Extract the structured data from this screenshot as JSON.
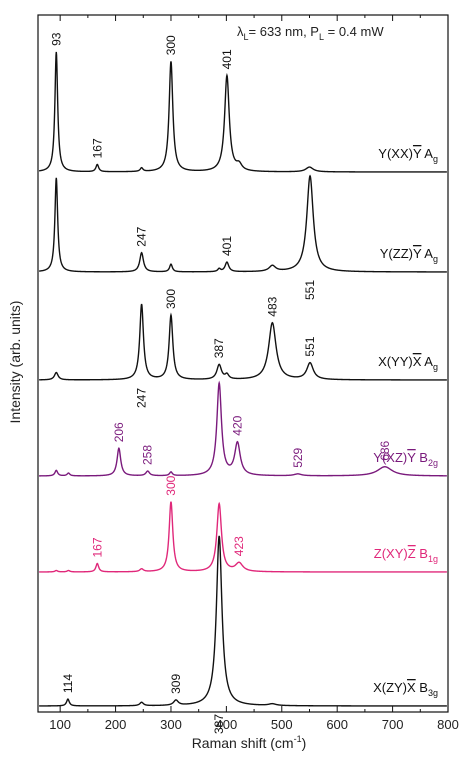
{
  "chart_data": {
    "type": "line",
    "xlabel": "Raman shift (cm",
    "xlabel_sup": "-1",
    "xlabel_end": ")",
    "ylabel": "Intensity (arb. units)",
    "xlim": [
      60,
      800
    ],
    "xticks": [
      100,
      200,
      300,
      400,
      500,
      600,
      700,
      800
    ],
    "annotation": {
      "lambda": "λ",
      "lambda_sub": "L",
      "text1": "= 633 nm, P",
      "p_sub": "L",
      "text2": " = 0.4 mW"
    },
    "colors": {
      "black": "#111111",
      "purple": "#7a1a7c",
      "magenta": "#e0287a"
    },
    "series": [
      {
        "name": "Y(XX)Y A_g",
        "label_main": "Y(XX)",
        "label_bar": "Y",
        "label_sym": " A",
        "label_sub": "g",
        "color": "#111111",
        "peaks": [
          [
            93,
            1.0,
            3
          ],
          [
            167,
            0.06,
            3
          ],
          [
            247,
            0.03,
            3
          ],
          [
            300,
            0.92,
            4
          ],
          [
            401,
            0.8,
            5
          ],
          [
            423,
            0.05,
            6
          ],
          [
            550,
            0.04,
            8
          ]
        ],
        "peak_labels": [
          {
            "text": "93",
            "x": 93,
            "pos": "above"
          },
          {
            "text": "167",
            "x": 167,
            "pos": "above"
          },
          {
            "text": "300",
            "x": 300,
            "pos": "above"
          },
          {
            "text": "401",
            "x": 401,
            "pos": "above"
          }
        ]
      },
      {
        "name": "Y(ZZ)Y A_g",
        "label_main": "Y(ZZ)",
        "label_bar": "Y",
        "label_sym": " A",
        "label_sub": "g",
        "color": "#111111",
        "peaks": [
          [
            93,
            0.98,
            3
          ],
          [
            247,
            0.2,
            4
          ],
          [
            300,
            0.08,
            3
          ],
          [
            387,
            0.03,
            3
          ],
          [
            401,
            0.1,
            4
          ],
          [
            483,
            0.06,
            7
          ],
          [
            551,
            1.0,
            7
          ]
        ],
        "peak_labels": [
          {
            "text": "247",
            "x": 247,
            "pos": "above"
          },
          {
            "text": "401",
            "x": 401,
            "pos": "above"
          },
          {
            "text": "551",
            "x": 551,
            "pos": "below"
          }
        ]
      },
      {
        "name": "X(YY)X A_g",
        "label_main": "X(YY)",
        "label_bar": "X",
        "label_sym": " A",
        "label_sub": "g",
        "color": "#111111",
        "peaks": [
          [
            93,
            0.08,
            4
          ],
          [
            247,
            0.82,
            4
          ],
          [
            300,
            0.7,
            4
          ],
          [
            387,
            0.16,
            5
          ],
          [
            401,
            0.05,
            4
          ],
          [
            483,
            0.62,
            8
          ],
          [
            551,
            0.18,
            7
          ]
        ],
        "peak_labels": [
          {
            "text": "300",
            "x": 300,
            "pos": "above"
          },
          {
            "text": "387",
            "x": 387,
            "pos": "above"
          },
          {
            "text": "483",
            "x": 483,
            "pos": "above"
          },
          {
            "text": "551",
            "x": 551,
            "pos": "above"
          },
          {
            "text": "247",
            "x": 247,
            "pos": "below"
          }
        ]
      },
      {
        "name": "Y(XZ)Y B_2g",
        "label_main": "Y(XZ)",
        "label_bar": "Y",
        "label_sym": " B",
        "label_sub": "2g",
        "color": "#7a1a7c",
        "peaks": [
          [
            93,
            0.06,
            3
          ],
          [
            115,
            0.03,
            3
          ],
          [
            206,
            0.3,
            4
          ],
          [
            258,
            0.05,
            4
          ],
          [
            300,
            0.04,
            3
          ],
          [
            387,
            1.0,
            5
          ],
          [
            420,
            0.35,
            6
          ],
          [
            529,
            0.02,
            8
          ],
          [
            686,
            0.1,
            16
          ]
        ],
        "peak_labels": [
          {
            "text": "206",
            "x": 206,
            "pos": "above"
          },
          {
            "text": "258",
            "x": 258,
            "pos": "above"
          },
          {
            "text": "420",
            "x": 420,
            "pos": "above"
          },
          {
            "text": "529",
            "x": 529,
            "pos": "above"
          },
          {
            "text": "686",
            "x": 686,
            "pos": "above"
          }
        ]
      },
      {
        "name": "Z(XY)Z B_1g",
        "label_main": "Z(XY)",
        "label_bar": "Z",
        "label_sym": " B",
        "label_sub": "1g",
        "color": "#e0287a",
        "peaks": [
          [
            93,
            0.02,
            3
          ],
          [
            115,
            0.02,
            3
          ],
          [
            167,
            0.12,
            3
          ],
          [
            247,
            0.04,
            4
          ],
          [
            300,
            1.0,
            4
          ],
          [
            387,
            0.97,
            5
          ],
          [
            423,
            0.12,
            8
          ]
        ],
        "peak_labels": [
          {
            "text": "167",
            "x": 167,
            "pos": "above"
          },
          {
            "text": "300",
            "x": 300,
            "pos": "above"
          },
          {
            "text": "423",
            "x": 423,
            "pos": "above"
          }
        ]
      },
      {
        "name": "X(ZY)X B_3g",
        "label_main": "X(ZY)",
        "label_bar": "X",
        "label_sym": " B",
        "label_sub": "3g",
        "color": "#111111",
        "peaks": [
          [
            114,
            0.04,
            3
          ],
          [
            247,
            0.02,
            4
          ],
          [
            309,
            0.03,
            5
          ],
          [
            387,
            1.0,
            6
          ],
          [
            483,
            0.01,
            8
          ]
        ],
        "peak_labels": [
          {
            "text": "114",
            "x": 114,
            "pos": "above"
          },
          {
            "text": "309",
            "x": 309,
            "pos": "above"
          },
          {
            "text": "387",
            "x": 387,
            "pos": "below"
          }
        ]
      }
    ]
  }
}
